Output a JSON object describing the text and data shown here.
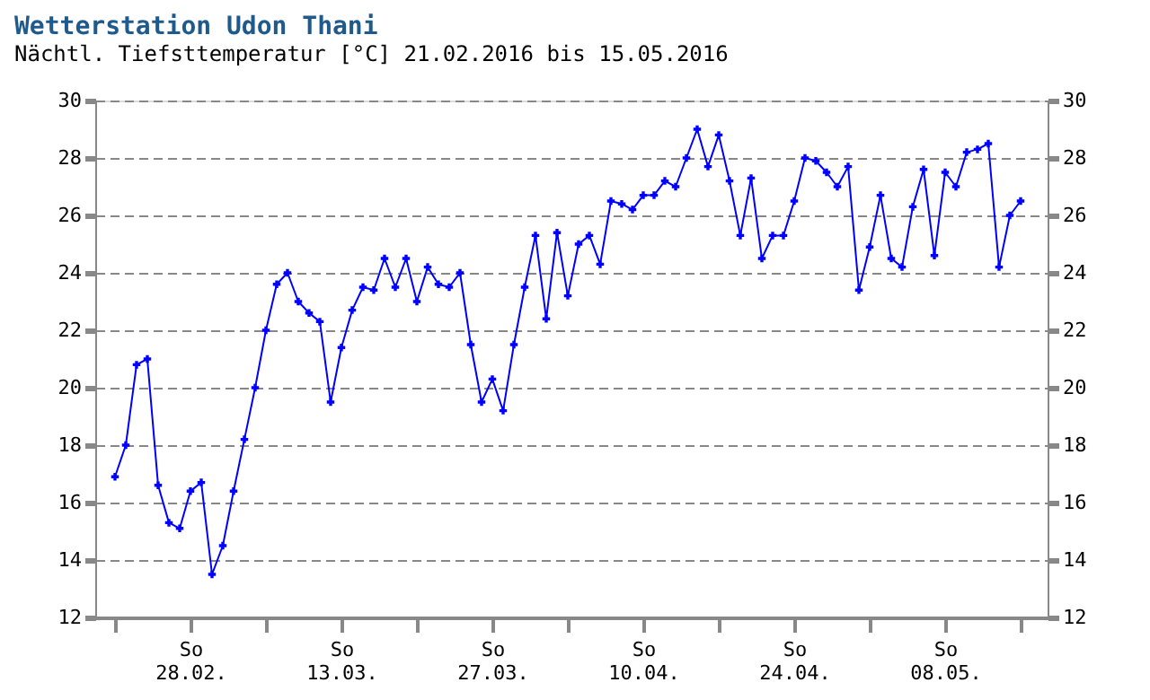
{
  "chart_data": {
    "type": "line",
    "title": "Wetterstation Udon Thani",
    "subtitle": "Nächtl. Tiefsttemperatur [°C] 21.02.2016 bis 15.05.2016",
    "series": [
      {
        "color": "#0000ff",
        "x": [
          "2016-02-21",
          "2016-02-22",
          "2016-02-23",
          "2016-02-24",
          "2016-02-25",
          "2016-02-26",
          "2016-02-27",
          "2016-02-28",
          "2016-02-29",
          "2016-03-01",
          "2016-03-02",
          "2016-03-03",
          "2016-03-04",
          "2016-03-05",
          "2016-03-06",
          "2016-03-07",
          "2016-03-08",
          "2016-03-09",
          "2016-03-10",
          "2016-03-11",
          "2016-03-12",
          "2016-03-13",
          "2016-03-14",
          "2016-03-15",
          "2016-03-16",
          "2016-03-17",
          "2016-03-18",
          "2016-03-19",
          "2016-03-20",
          "2016-03-21",
          "2016-03-22",
          "2016-03-23",
          "2016-03-24",
          "2016-03-25",
          "2016-03-26",
          "2016-03-27",
          "2016-03-28",
          "2016-03-29",
          "2016-03-30",
          "2016-03-31",
          "2016-04-01",
          "2016-04-02",
          "2016-04-03",
          "2016-04-04",
          "2016-04-05",
          "2016-04-06",
          "2016-04-07",
          "2016-04-08",
          "2016-04-09",
          "2016-04-10",
          "2016-04-11",
          "2016-04-12",
          "2016-04-13",
          "2016-04-14",
          "2016-04-15",
          "2016-04-16",
          "2016-04-17",
          "2016-04-18",
          "2016-04-19",
          "2016-04-20",
          "2016-04-21",
          "2016-04-22",
          "2016-04-23",
          "2016-04-24",
          "2016-04-25",
          "2016-04-26",
          "2016-04-27",
          "2016-04-28",
          "2016-04-29",
          "2016-04-30",
          "2016-05-01",
          "2016-05-02",
          "2016-05-03",
          "2016-05-04",
          "2016-05-05",
          "2016-05-06",
          "2016-05-07",
          "2016-05-08",
          "2016-05-09",
          "2016-05-10",
          "2016-05-11",
          "2016-05-12",
          "2016-05-13",
          "2016-05-14",
          "2016-05-15"
        ],
        "values": [
          16.9,
          18.0,
          20.8,
          21.0,
          16.6,
          15.3,
          15.1,
          16.4,
          16.7,
          13.5,
          14.5,
          16.4,
          18.2,
          20.0,
          22.0,
          23.6,
          24.0,
          23.0,
          22.6,
          22.3,
          19.5,
          21.4,
          22.7,
          23.5,
          23.4,
          24.5,
          23.5,
          24.5,
          23.0,
          24.2,
          23.6,
          23.5,
          24.0,
          21.5,
          19.5,
          20.3,
          19.2,
          21.5,
          23.5,
          25.3,
          22.4,
          25.4,
          23.2,
          25.0,
          25.3,
          24.3,
          26.5,
          26.4,
          26.2,
          26.7,
          26.7,
          27.2,
          27.0,
          28.0,
          29.0,
          27.7,
          28.8,
          27.2,
          25.3,
          27.3,
          24.5,
          25.3,
          25.3,
          26.5,
          28.0,
          27.9,
          27.5,
          27.0,
          27.7,
          23.4,
          24.9,
          26.7,
          24.5,
          24.2,
          26.3,
          27.6,
          24.6,
          27.5,
          27.0,
          28.2,
          28.3,
          28.5,
          24.2,
          26.0,
          26.5
        ]
      }
    ],
    "xlim": [
      "2016-02-19T04:00",
      "2016-05-17T12:00"
    ],
    "xticks": [
      {
        "value": "2016-02-21",
        "label": null
      },
      {
        "value": "2016-02-28",
        "label": "So 28.02."
      },
      {
        "value": "2016-03-06",
        "label": null
      },
      {
        "value": "2016-03-13",
        "label": "So 13.03."
      },
      {
        "value": "2016-03-20",
        "label": null
      },
      {
        "value": "2016-03-27",
        "label": "So 27.03."
      },
      {
        "value": "2016-04-03",
        "label": null
      },
      {
        "value": "2016-04-10",
        "label": "So 10.04."
      },
      {
        "value": "2016-04-17",
        "label": null
      },
      {
        "value": "2016-04-24",
        "label": "So 24.04."
      },
      {
        "value": "2016-05-01",
        "label": null
      },
      {
        "value": "2016-05-08",
        "label": "So 08.05."
      },
      {
        "value": "2016-05-15",
        "label": null
      }
    ],
    "ylim": [
      12,
      30
    ],
    "yticks": [
      12,
      14,
      16,
      18,
      20,
      22,
      24,
      26,
      28,
      30
    ],
    "y2lim": [
      12,
      30
    ],
    "y2ticks": [
      12,
      14,
      16,
      18,
      20,
      22,
      24,
      26,
      28,
      30
    ],
    "grid": "y",
    "marker": "cross",
    "line_style": "solid"
  }
}
